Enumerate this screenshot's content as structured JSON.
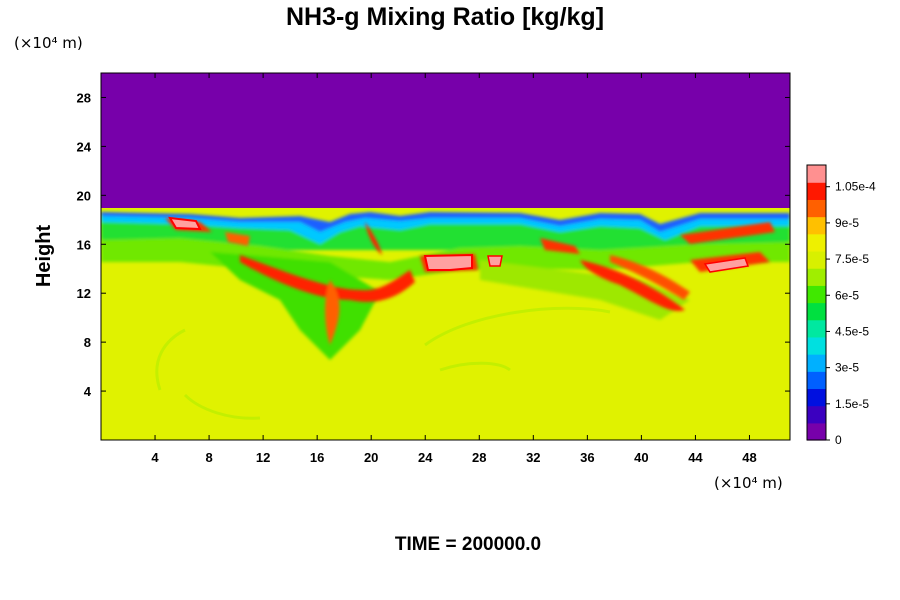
{
  "chart_data": {
    "type": "heatmap",
    "title": "NH3-g Mixing Ratio [kg/kg]",
    "ylabel": "Height",
    "yunit": "(×10⁴ m)",
    "xunit": "(×10⁴ m)",
    "footer": "TIME = 200000.0",
    "xlim": [
      0,
      51
    ],
    "ylim": [
      0,
      30
    ],
    "x_ticks": [
      4,
      8,
      12,
      16,
      20,
      24,
      28,
      32,
      36,
      40,
      44,
      48
    ],
    "y_ticks": [
      4,
      8,
      12,
      16,
      20,
      24,
      28
    ],
    "colorbar": {
      "min": 0,
      "max": 0.000114,
      "tick_values": [
        0,
        1.5e-05,
        3e-05,
        4.5e-05,
        6e-05,
        7.5e-05,
        9e-05,
        0.000105
      ],
      "tick_labels": [
        "0",
        "1.5e-5",
        "3e-5",
        "4.5e-5",
        "6e-5",
        "7.5e-5",
        "9e-5",
        "1.05e-4"
      ],
      "colors": [
        "#7700aa",
        "#3b00c0",
        "#0010e0",
        "#0060ff",
        "#00b0ff",
        "#00e0e0",
        "#00e8a0",
        "#00e040",
        "#40e800",
        "#a0ee00",
        "#d8f000",
        "#eef000",
        "#ffc000",
        "#ff6000",
        "#ff1800",
        "#ff9090"
      ]
    },
    "field_description": {
      "upper_region_value": 0,
      "lower_region_value": 7.35e-05,
      "cloud_top_height": 18.5,
      "background_green_value": 5e-05
    }
  }
}
